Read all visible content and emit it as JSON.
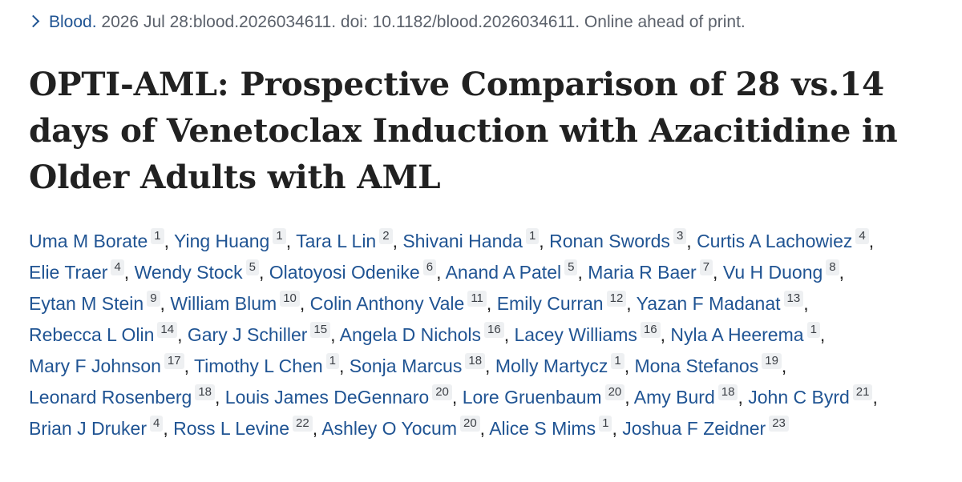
{
  "citation": {
    "journal": "Blood.",
    "details": "2026 Jul 28:blood.2026034611. doi: 10.1182/blood.2026034611. Online ahead of print.",
    "icon": "chevron-right-icon"
  },
  "title": "OPTI-AML: Prospective Comparison of 28 vs.14 days of Venetoclax Induction with Azacitidine in Older Adults with AML",
  "authors": [
    {
      "name": "Uma M Borate",
      "aff": "1"
    },
    {
      "name": "Ying Huang",
      "aff": "1"
    },
    {
      "name": "Tara L Lin",
      "aff": "2"
    },
    {
      "name": "Shivani Handa",
      "aff": "1"
    },
    {
      "name": "Ronan Swords",
      "aff": "3"
    },
    {
      "name": "Curtis A Lachowiez",
      "aff": "4"
    },
    {
      "name": "Elie Traer",
      "aff": "4"
    },
    {
      "name": "Wendy Stock",
      "aff": "5"
    },
    {
      "name": "Olatoyosi Odenike",
      "aff": "6"
    },
    {
      "name": "Anand A Patel",
      "aff": "5"
    },
    {
      "name": "Maria R Baer",
      "aff": "7"
    },
    {
      "name": "Vu H Duong",
      "aff": "8"
    },
    {
      "name": "Eytan M Stein",
      "aff": "9"
    },
    {
      "name": "William Blum",
      "aff": "10"
    },
    {
      "name": "Colin Anthony Vale",
      "aff": "11"
    },
    {
      "name": "Emily Curran",
      "aff": "12"
    },
    {
      "name": "Yazan F Madanat",
      "aff": "13"
    },
    {
      "name": "Rebecca L Olin",
      "aff": "14"
    },
    {
      "name": "Gary J Schiller",
      "aff": "15"
    },
    {
      "name": "Angela D Nichols",
      "aff": "16"
    },
    {
      "name": "Lacey Williams",
      "aff": "16"
    },
    {
      "name": "Nyla A Heerema",
      "aff": "1"
    },
    {
      "name": "Mary F Johnson",
      "aff": "17"
    },
    {
      "name": "Timothy L Chen",
      "aff": "1"
    },
    {
      "name": "Sonja Marcus",
      "aff": "18"
    },
    {
      "name": "Molly Martycz",
      "aff": "1"
    },
    {
      "name": "Mona Stefanos",
      "aff": "19"
    },
    {
      "name": "Leonard Rosenberg",
      "aff": "18"
    },
    {
      "name": "Louis James DeGennaro",
      "aff": "20"
    },
    {
      "name": "Lore Gruenbaum",
      "aff": "20"
    },
    {
      "name": "Amy Burd",
      "aff": "18"
    },
    {
      "name": "John C Byrd",
      "aff": "21"
    },
    {
      "name": "Brian J Druker",
      "aff": "4"
    },
    {
      "name": "Ross L Levine",
      "aff": "22"
    },
    {
      "name": "Ashley O Yocum",
      "aff": "20"
    },
    {
      "name": "Alice S Mims",
      "aff": "1"
    },
    {
      "name": "Joshua F Zeidner",
      "aff": "23"
    }
  ],
  "colors": {
    "link": "#205493",
    "text": "#212121",
    "muted": "#5b616b",
    "badge_bg": "#eef0f2"
  }
}
